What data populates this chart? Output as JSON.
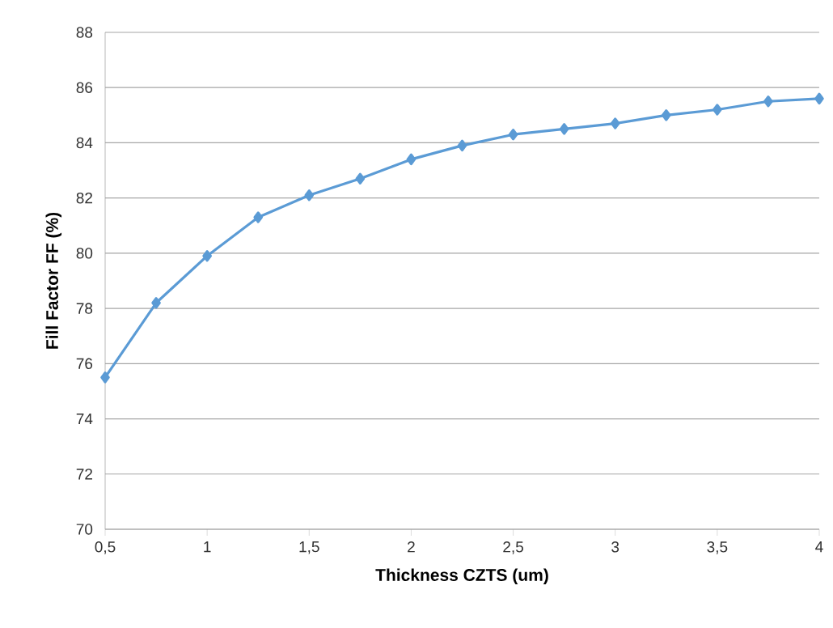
{
  "chart_data": {
    "type": "line",
    "xlabel": "Thickness CZTS (um)",
    "ylabel": "Fill Factor FF (%)",
    "x": [
      0.5,
      0.75,
      1,
      1.25,
      1.5,
      1.75,
      2,
      2.25,
      2.5,
      2.75,
      3,
      3.25,
      3.5,
      3.75,
      4
    ],
    "series": [
      {
        "color": "#5b9bd5",
        "values": [
          75.5,
          78.2,
          79.9,
          81.3,
          82.1,
          82.7,
          83.4,
          83.9,
          84.3,
          84.5,
          84.7,
          85.0,
          85.2,
          85.5,
          85.6
        ]
      }
    ],
    "xlim": [
      0.5,
      4
    ],
    "xticks": [
      {
        "value": 0.5,
        "label": "0,5"
      },
      1,
      {
        "value": 1.5,
        "label": "1,5"
      },
      2,
      {
        "value": 2.5,
        "label": "2,5"
      },
      3,
      {
        "value": 3.5,
        "label": "3,5"
      },
      4
    ],
    "ylim": [
      70,
      88
    ],
    "yticks": [
      70,
      72,
      74,
      76,
      78,
      80,
      82,
      84,
      86,
      88
    ],
    "grid": "y",
    "marker": "diamond",
    "line_style": "solid"
  }
}
